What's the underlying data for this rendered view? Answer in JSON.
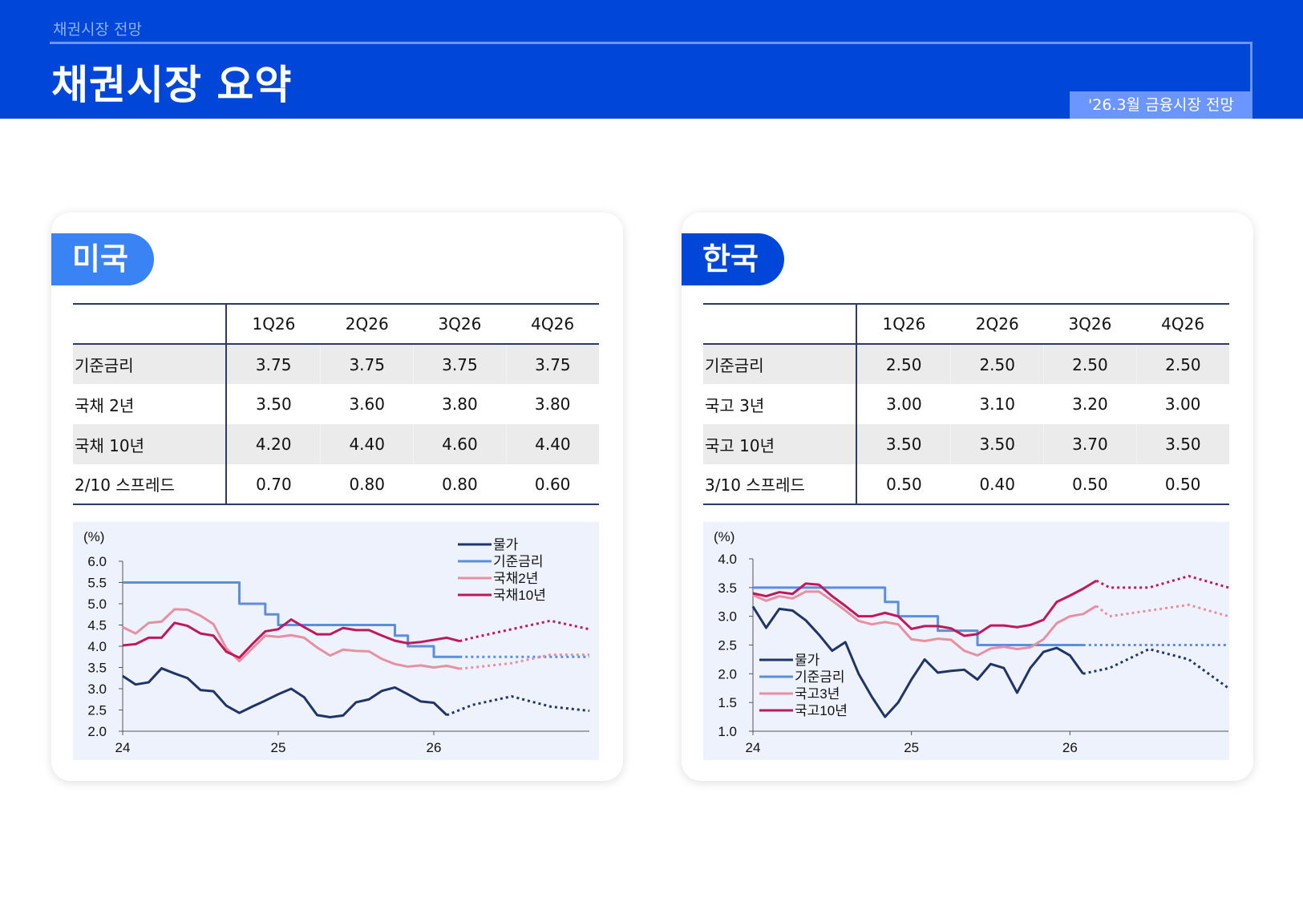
{
  "header": {
    "subtitle": "채권시장 전망",
    "title": "채권시장 요약",
    "tag": "'26.3월 금융시장 전망"
  },
  "colors": {
    "header_bg": "#0046d8",
    "us_badge": "#3a83f5",
    "kr_badge": "#0046d8",
    "cpi": "#1f3468",
    "policy_rate": "#5b8de0",
    "short_bond": "#e8909f",
    "long_bond": "#c0185a"
  },
  "us": {
    "badge": "미국",
    "table": {
      "columns": [
        "",
        "1Q26",
        "2Q26",
        "3Q26",
        "4Q26"
      ],
      "rows": [
        {
          "label": "기준금리",
          "values": [
            "3.75",
            "3.75",
            "3.75",
            "3.75"
          ]
        },
        {
          "label": "국채 2년",
          "values": [
            "3.50",
            "3.60",
            "3.80",
            "3.80"
          ]
        },
        {
          "label": "국채 10년",
          "values": [
            "4.20",
            "4.40",
            "4.60",
            "4.40"
          ]
        },
        {
          "label": "2/10 스프레드",
          "values": [
            "0.70",
            "0.80",
            "0.80",
            "0.60"
          ]
        }
      ]
    }
  },
  "kr": {
    "badge": "한국",
    "table": {
      "columns": [
        "",
        "1Q26",
        "2Q26",
        "3Q26",
        "4Q26"
      ],
      "rows": [
        {
          "label": "기준금리",
          "values": [
            "2.50",
            "2.50",
            "2.50",
            "2.50"
          ]
        },
        {
          "label": "국고 3년",
          "values": [
            "3.00",
            "3.10",
            "3.20",
            "3.00"
          ]
        },
        {
          "label": "국고 10년",
          "values": [
            "3.50",
            "3.50",
            "3.70",
            "3.50"
          ]
        },
        {
          "label": "3/10 스프레드",
          "values": [
            "0.50",
            "0.40",
            "0.50",
            "0.50"
          ]
        }
      ]
    }
  },
  "chart_data": [
    {
      "type": "line",
      "unit_label": "(%)",
      "ylim": [
        2.0,
        6.0
      ],
      "yticks": [
        "2.0",
        "2.5",
        "3.0",
        "3.5",
        "4.0",
        "4.5",
        "5.0",
        "5.5",
        "6.0"
      ],
      "xlim": [
        "2024-01",
        "2027-01"
      ],
      "xticks": [
        {
          "date": "2024-01",
          "label": "24"
        },
        {
          "date": "2025-01",
          "label": "25"
        },
        {
          "date": "2026-01",
          "label": "26"
        }
      ],
      "legend": "top-right",
      "grid": false,
      "series": [
        {
          "name": "물가",
          "color_key": "cpi",
          "start": "2024-01",
          "values": [
            3.3,
            3.1,
            3.15,
            3.48,
            3.36,
            3.25,
            2.97,
            2.94,
            2.6,
            2.43,
            2.58,
            2.72,
            2.87,
            3.0,
            2.8,
            2.38,
            2.33,
            2.37,
            2.68,
            2.75,
            2.95,
            3.03,
            2.87,
            2.7,
            2.67,
            2.38
          ],
          "forecast": [
            [
              "2026-04",
              2.62
            ],
            [
              "2026-07",
              2.82
            ],
            [
              "2026-10",
              2.58
            ],
            [
              "2027-01",
              2.48
            ]
          ]
        },
        {
          "name": "기준금리",
          "color_key": "policy_rate",
          "step": true,
          "start": "2024-01",
          "values": [
            5.5,
            5.5,
            5.5,
            5.5,
            5.5,
            5.5,
            5.5,
            5.5,
            5.5,
            5.0,
            5.0,
            4.75,
            4.5,
            4.5,
            4.5,
            4.5,
            4.5,
            4.5,
            4.5,
            4.5,
            4.5,
            4.25,
            4.0,
            4.0,
            3.75,
            3.75,
            3.75
          ],
          "forecast": [
            [
              "2027-01",
              3.75
            ]
          ]
        },
        {
          "name": "국채2년",
          "color_key": "short_bond",
          "start": "2024-01",
          "values": [
            4.45,
            4.3,
            4.55,
            4.58,
            4.87,
            4.86,
            4.72,
            4.52,
            3.95,
            3.65,
            3.95,
            4.25,
            4.22,
            4.26,
            4.2,
            3.97,
            3.78,
            3.92,
            3.89,
            3.88,
            3.7,
            3.58,
            3.52,
            3.55,
            3.5,
            3.54,
            3.47
          ],
          "forecast": [
            [
              "2026-04",
              3.5
            ],
            [
              "2026-07",
              3.6
            ],
            [
              "2026-10",
              3.8
            ],
            [
              "2027-01",
              3.8
            ]
          ]
        },
        {
          "name": "국채10년",
          "color_key": "long_bond",
          "start": "2024-01",
          "values": [
            4.02,
            4.05,
            4.2,
            4.2,
            4.55,
            4.48,
            4.3,
            4.25,
            3.87,
            3.73,
            4.05,
            4.35,
            4.4,
            4.63,
            4.45,
            4.28,
            4.28,
            4.43,
            4.38,
            4.38,
            4.25,
            4.13,
            4.07,
            4.1,
            4.15,
            4.2,
            4.12
          ],
          "forecast": [
            [
              "2026-04",
              4.2
            ],
            [
              "2026-07",
              4.4
            ],
            [
              "2026-10",
              4.6
            ],
            [
              "2027-01",
              4.4
            ]
          ]
        }
      ]
    },
    {
      "type": "line",
      "unit_label": "(%)",
      "ylim": [
        1.0,
        4.0
      ],
      "yticks": [
        "1.0",
        "1.5",
        "2.0",
        "2.5",
        "3.0",
        "3.5",
        "4.0"
      ],
      "xlim": [
        "2024-01",
        "2027-01"
      ],
      "xticks": [
        {
          "date": "2024-01",
          "label": "24"
        },
        {
          "date": "2025-01",
          "label": "25"
        },
        {
          "date": "2026-01",
          "label": "26"
        }
      ],
      "legend": "bottom-left",
      "grid": false,
      "series": [
        {
          "name": "물가",
          "color_key": "cpi",
          "start": "2024-01",
          "values": [
            3.17,
            2.8,
            3.13,
            3.1,
            2.93,
            2.68,
            2.4,
            2.55,
            2.0,
            1.6,
            1.25,
            1.5,
            1.9,
            2.25,
            2.02,
            2.05,
            2.07,
            1.9,
            2.17,
            2.1,
            1.67,
            2.1,
            2.38,
            2.45,
            2.32,
            2.0
          ],
          "forecast": [
            [
              "2026-04",
              2.1
            ],
            [
              "2026-07",
              2.43
            ],
            [
              "2026-10",
              2.25
            ],
            [
              "2027-01",
              1.75
            ]
          ]
        },
        {
          "name": "기준금리",
          "color_key": "policy_rate",
          "step": true,
          "start": "2024-01",
          "values": [
            3.5,
            3.5,
            3.5,
            3.5,
            3.5,
            3.5,
            3.5,
            3.5,
            3.5,
            3.5,
            3.25,
            3.0,
            3.0,
            3.0,
            2.75,
            2.75,
            2.75,
            2.5,
            2.5,
            2.5,
            2.5,
            2.5,
            2.5,
            2.5,
            2.5,
            2.5
          ],
          "forecast": [
            [
              "2027-01",
              2.5
            ]
          ]
        },
        {
          "name": "국고3년",
          "color_key": "short_bond",
          "start": "2024-01",
          "values": [
            3.37,
            3.27,
            3.35,
            3.31,
            3.43,
            3.43,
            3.27,
            3.1,
            2.92,
            2.86,
            2.9,
            2.86,
            2.6,
            2.57,
            2.61,
            2.59,
            2.4,
            2.32,
            2.44,
            2.47,
            2.43,
            2.46,
            2.6,
            2.88,
            3.0,
            3.04,
            3.18
          ],
          "forecast": [
            [
              "2026-04",
              3.0
            ],
            [
              "2026-07",
              3.1
            ],
            [
              "2026-10",
              3.2
            ],
            [
              "2027-01",
              3.0
            ]
          ]
        },
        {
          "name": "국고10년",
          "color_key": "long_bond",
          "start": "2024-01",
          "values": [
            3.4,
            3.35,
            3.42,
            3.39,
            3.57,
            3.55,
            3.35,
            3.18,
            3.0,
            3.0,
            3.06,
            3.0,
            2.78,
            2.83,
            2.83,
            2.79,
            2.66,
            2.69,
            2.84,
            2.84,
            2.81,
            2.85,
            2.94,
            3.25,
            3.36,
            3.48,
            3.62
          ],
          "forecast": [
            [
              "2026-04",
              3.5
            ],
            [
              "2026-07",
              3.5
            ],
            [
              "2026-10",
              3.7
            ],
            [
              "2027-01",
              3.5
            ]
          ]
        }
      ]
    }
  ]
}
